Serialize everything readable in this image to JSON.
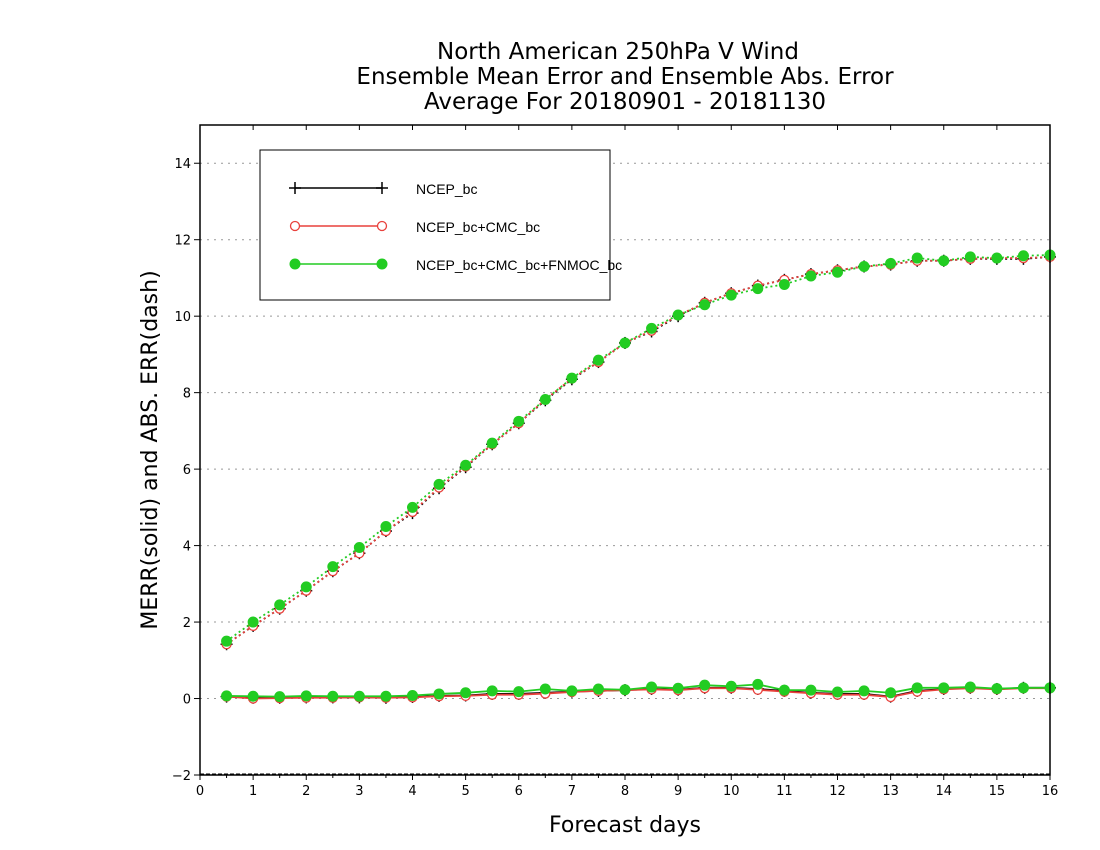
{
  "chart_data": {
    "type": "line",
    "title": [
      "North American 250hPa V Wind",
      "Ensemble Mean Error and Ensemble Abs. Error",
      "Average For 20180901 - 20181130"
    ],
    "xlabel": "Forecast days",
    "ylabel": "MERR(solid) and ABS. ERR(dash)",
    "xlim": [
      0,
      16
    ],
    "ylim": [
      -2,
      15
    ],
    "xticks": [
      "0",
      "1",
      "2",
      "3",
      "4",
      "5",
      "6",
      "7",
      "8",
      "9",
      "10",
      "11",
      "12",
      "13",
      "14",
      "15",
      "16"
    ],
    "yticks": [
      "−2",
      "0",
      "2",
      "4",
      "6",
      "8",
      "10",
      "12",
      "14"
    ],
    "grid": true,
    "legend_position": "top-left",
    "x": [
      0.5,
      1,
      1.5,
      2,
      2.5,
      3,
      3.5,
      4,
      4.5,
      5,
      5.5,
      6,
      6.5,
      7,
      7.5,
      8,
      8.5,
      9,
      9.5,
      10,
      10.5,
      11,
      11.5,
      12,
      12.5,
      13,
      13.5,
      14,
      14.5,
      15,
      15.5,
      16
    ],
    "series": [
      {
        "name": "NCEP_bc",
        "color": "#000000",
        "marker": "plus",
        "merr": [
          0.05,
          0.02,
          0.02,
          0.03,
          0.03,
          0.03,
          0.02,
          0.04,
          0.07,
          0.08,
          0.12,
          0.12,
          0.15,
          0.18,
          0.2,
          0.22,
          0.25,
          0.23,
          0.28,
          0.28,
          0.25,
          0.2,
          0.15,
          0.12,
          0.12,
          0.05,
          0.2,
          0.25,
          0.28,
          0.25,
          0.28,
          0.28
        ],
        "abs_err": [
          1.42,
          1.9,
          2.35,
          2.82,
          3.33,
          3.8,
          4.38,
          4.85,
          5.5,
          6.05,
          6.65,
          7.2,
          7.8,
          8.35,
          8.8,
          9.3,
          9.6,
          10.0,
          10.35,
          10.6,
          10.8,
          10.95,
          11.1,
          11.2,
          11.3,
          11.35,
          11.45,
          11.45,
          11.5,
          11.5,
          11.5,
          11.55
        ]
      },
      {
        "name": "NCEP_bc+CMC_bc",
        "color": "#e8413c",
        "marker": "open-circle",
        "merr": [
          0.05,
          0.0,
          0.01,
          0.02,
          0.02,
          0.03,
          0.02,
          0.03,
          0.06,
          0.07,
          0.1,
          0.1,
          0.13,
          0.17,
          0.2,
          0.22,
          0.24,
          0.22,
          0.27,
          0.27,
          0.23,
          0.18,
          0.14,
          0.1,
          0.1,
          0.04,
          0.18,
          0.24,
          0.27,
          0.24,
          0.27,
          0.27
        ],
        "abs_err": [
          1.42,
          1.9,
          2.35,
          2.82,
          3.33,
          3.8,
          4.38,
          4.88,
          5.52,
          6.07,
          6.65,
          7.2,
          7.82,
          8.37,
          8.8,
          9.3,
          9.62,
          10.02,
          10.35,
          10.6,
          10.8,
          10.95,
          11.1,
          11.2,
          11.3,
          11.35,
          11.45,
          11.45,
          11.5,
          11.52,
          11.52,
          11.55
        ]
      },
      {
        "name": "NCEP_bc+CMC_bc+FNMOC_bc",
        "color": "#22cc22",
        "marker": "filled-circle",
        "merr": [
          0.07,
          0.06,
          0.05,
          0.07,
          0.06,
          0.06,
          0.06,
          0.08,
          0.12,
          0.15,
          0.2,
          0.18,
          0.25,
          0.2,
          0.25,
          0.23,
          0.3,
          0.27,
          0.35,
          0.32,
          0.37,
          0.22,
          0.22,
          0.17,
          0.2,
          0.15,
          0.28,
          0.28,
          0.3,
          0.26,
          0.28,
          0.28
        ],
        "abs_err": [
          1.5,
          2.0,
          2.45,
          2.92,
          3.45,
          3.95,
          4.5,
          5.0,
          5.6,
          6.1,
          6.68,
          7.25,
          7.82,
          8.38,
          8.85,
          9.3,
          9.68,
          10.03,
          10.3,
          10.55,
          10.72,
          10.83,
          11.05,
          11.15,
          11.3,
          11.38,
          11.52,
          11.45,
          11.55,
          11.52,
          11.58,
          11.6
        ]
      }
    ]
  }
}
